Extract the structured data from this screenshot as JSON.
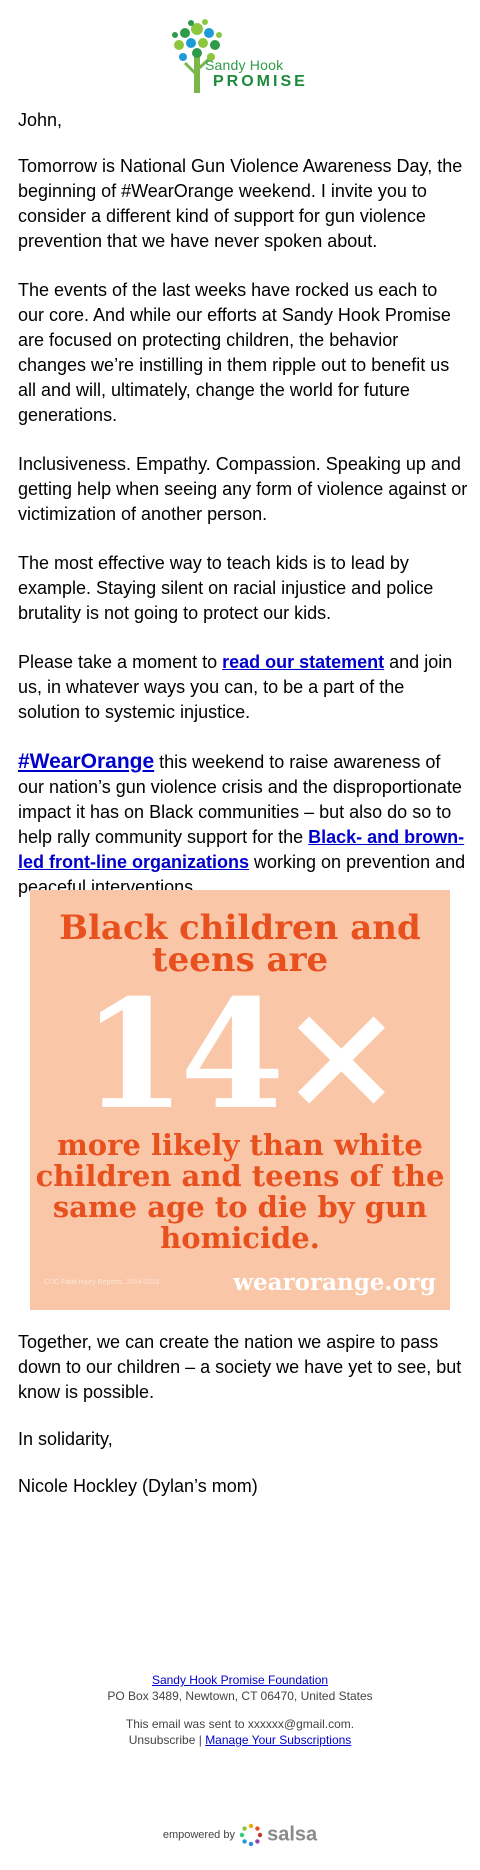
{
  "header": {
    "logo_line1": "Sandy Hook",
    "logo_line2": "PROMISE"
  },
  "body": {
    "greeting": "John,",
    "p1": "Tomorrow is National Gun Violence Awareness Day, the beginning of #WearOrange weekend. I invite you to consider a different kind of support for gun violence prevention that we have never spoken about.",
    "p2": "The events of the last weeks have rocked us each to our core. And while our efforts at Sandy Hook Promise are focused on protecting children, the behavior changes we’re instilling in them ripple out to benefit us all and will, ultimately, change the world for future generations.",
    "p3": "Inclusiveness. Empathy. Compassion. Speaking up and getting help when seeing any form of violence against or victimization of another person.",
    "p4": "The most effective way to teach kids is to lead by example. Staying silent on racial injustice and police brutality is not going to protect our kids.",
    "p5_pre": "Please take a moment to ",
    "p5_link": "read our statement",
    "p5_post": " and join us, in whatever ways you can, to be a part of the solution to systemic injustice.",
    "p6_link1": "#WearOrange",
    "p6_mid": " this weekend to raise awareness of our nation’s gun violence crisis and the disproportionate impact it has on Black communities – but also do so to help rally community support for the ",
    "p6_link2": "Black- and brown-led front-line organizations",
    "p6_post": " working on prevention and peaceful interventions."
  },
  "banner": {
    "line1": "Black children and teens are",
    "big": "14×",
    "line3": "more likely than white children and teens of the same age to die by gun homicide.",
    "source": "CDC Fatal Injury Reports, 2014-2018",
    "site": "wearorange.org",
    "bg_color": "#f9c6a8",
    "accent_color": "#e8501e"
  },
  "closing": {
    "p1": "Together, we can create the nation we aspire to pass down to our children – a society we have yet to see, but know is possible.",
    "p2": "In solidarity,",
    "p3": "Nicole Hockley (Dylan’s mom)"
  },
  "footer": {
    "org_link": "Sandy Hook Promise Foundation",
    "address": "PO Box 3489, Newtown, CT 06470, United States",
    "sent_to": "This email was sent to xxxxxx@gmail.com.",
    "unsubscribe": "Unsubscribe",
    "separator": " | ",
    "manage": "Manage Your Subscriptions"
  },
  "powered": {
    "label": "empowered by",
    "brand": "salsa"
  }
}
